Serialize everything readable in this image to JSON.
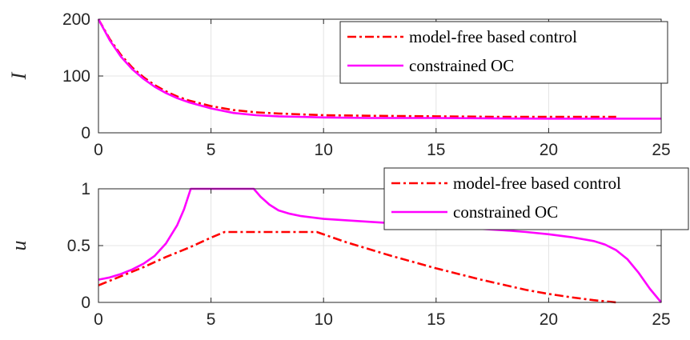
{
  "chart_data": [
    {
      "type": "line",
      "ylabel": "I",
      "xlim": [
        0,
        25
      ],
      "ylim": [
        0,
        200
      ],
      "xticks": [
        0,
        5,
        10,
        15,
        20,
        25
      ],
      "yticks": [
        0,
        100,
        200
      ],
      "grid": true,
      "legend_position": "top-right",
      "series": [
        {
          "name": "model-free based control",
          "color": "#ff0000",
          "style": "dash-dot",
          "x": [
            0,
            0.5,
            1,
            1.5,
            2,
            2.5,
            3,
            3.5,
            4,
            5,
            6,
            7,
            8,
            10,
            12,
            15,
            18,
            20,
            23
          ],
          "y": [
            200,
            165,
            137,
            115,
            98,
            84,
            73,
            64,
            57,
            47,
            40,
            36,
            34,
            31,
            30,
            29,
            28,
            28,
            28
          ]
        },
        {
          "name": "constrained OC",
          "color": "#ff00ff",
          "style": "solid",
          "x": [
            0,
            0.5,
            1,
            1.5,
            2,
            2.5,
            3,
            3.5,
            4,
            5,
            6,
            7,
            8,
            10,
            12,
            15,
            20,
            25
          ],
          "y": [
            200,
            163,
            134,
            112,
            95,
            81,
            70,
            61,
            54,
            43,
            35,
            31,
            29,
            27,
            26,
            26,
            25,
            25
          ]
        }
      ]
    },
    {
      "type": "line",
      "ylabel": "u",
      "xlim": [
        0,
        25
      ],
      "ylim": [
        0,
        1
      ],
      "xticks": [
        0,
        5,
        10,
        15,
        20,
        25
      ],
      "yticks": [
        0,
        0.5,
        1
      ],
      "grid": true,
      "legend_position": "top-right",
      "series": [
        {
          "name": "model-free based control",
          "color": "#ff0000",
          "style": "dash-dot",
          "x": [
            0,
            1,
            2,
            3,
            4,
            5,
            5.6,
            7,
            8,
            9,
            9.7,
            11,
            13,
            15,
            17,
            19,
            20,
            21,
            22,
            23
          ],
          "y": [
            0.15,
            0.23,
            0.31,
            0.4,
            0.48,
            0.57,
            0.62,
            0.62,
            0.62,
            0.62,
            0.62,
            0.53,
            0.41,
            0.3,
            0.2,
            0.11,
            0.075,
            0.045,
            0.02,
            0.0
          ]
        },
        {
          "name": "constrained OC",
          "color": "#ff00ff",
          "style": "solid",
          "x": [
            0,
            0.5,
            1,
            1.5,
            2,
            2.5,
            3,
            3.5,
            3.8,
            4.1,
            5,
            6,
            6.9,
            7.2,
            7.6,
            8,
            8.5,
            9,
            10,
            12,
            14,
            16,
            18,
            19,
            20,
            21,
            22,
            22.5,
            23,
            23.5,
            24,
            24.5,
            25
          ],
          "y": [
            0.2,
            0.22,
            0.25,
            0.29,
            0.34,
            0.41,
            0.52,
            0.68,
            0.82,
            1.0,
            1.0,
            1.0,
            1.0,
            0.93,
            0.86,
            0.81,
            0.78,
            0.76,
            0.735,
            0.71,
            0.685,
            0.66,
            0.635,
            0.62,
            0.6,
            0.575,
            0.54,
            0.51,
            0.46,
            0.38,
            0.26,
            0.12,
            0.0
          ]
        }
      ]
    }
  ]
}
